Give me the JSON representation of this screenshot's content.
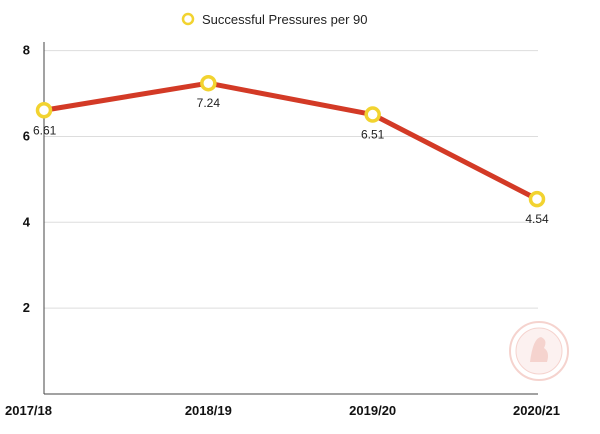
{
  "chart_data": {
    "type": "line",
    "categories": [
      "2017/18",
      "2018/19",
      "2019/20",
      "2020/21"
    ],
    "series": [
      {
        "name": "Successful Pressures per 90",
        "values": [
          6.61,
          7.24,
          6.51,
          4.54
        ]
      }
    ],
    "data_labels": [
      "6.61",
      "7.24",
      "6.51",
      "4.54"
    ],
    "yticks": [
      2,
      4,
      6,
      8
    ],
    "ylim": [
      0,
      8.2
    ],
    "grid": true,
    "legend_position": "top",
    "colors": {
      "line": "#d33a26",
      "marker_stroke": "#f2d330",
      "marker_fill": "#ffffff",
      "grid": "#dddddd",
      "axis": "#444444"
    }
  }
}
